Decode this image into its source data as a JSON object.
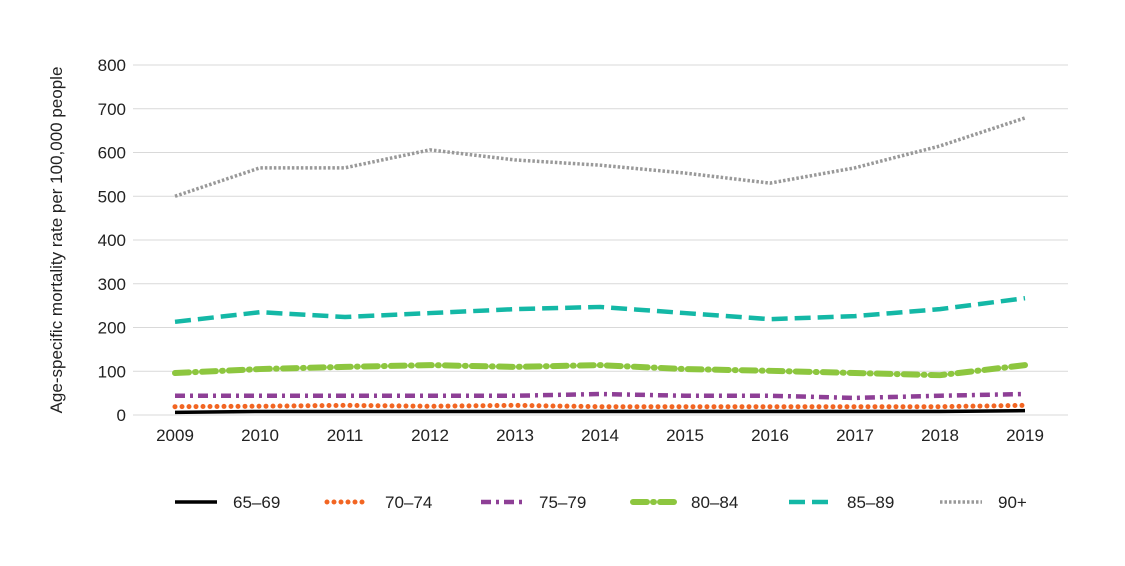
{
  "chart_data": {
    "type": "line",
    "title": "",
    "xlabel": "",
    "ylabel": "Age-specific mortality rate per 100,000 people",
    "ylim": [
      0,
      800
    ],
    "yticks": [
      0,
      100,
      200,
      300,
      400,
      500,
      600,
      700,
      800
    ],
    "x": [
      "2009",
      "2010",
      "2011",
      "2012",
      "2013",
      "2014",
      "2015",
      "2016",
      "2017",
      "2018",
      "2019"
    ],
    "grid": "horizontal",
    "legend_position": "bottom",
    "series": [
      {
        "name": "65–69",
        "color": "#000000",
        "dash": "solid",
        "values": [
          6,
          8,
          8,
          8,
          8,
          8,
          8,
          8,
          8,
          8,
          10
        ]
      },
      {
        "name": "70–74",
        "color": "#f26522",
        "dash": "dotted",
        "values": [
          19,
          20,
          22,
          20,
          22,
          19,
          19,
          19,
          19,
          19,
          22
        ]
      },
      {
        "name": "75–79",
        "color": "#8e3f96",
        "dash": "dashdot",
        "values": [
          44,
          44,
          44,
          44,
          44,
          48,
          44,
          44,
          39,
          44,
          48
        ]
      },
      {
        "name": "80–84",
        "color": "#8dc63f",
        "dash": "longdashdot",
        "values": [
          96,
          105,
          110,
          114,
          110,
          114,
          105,
          101,
          96,
          91,
          114
        ]
      },
      {
        "name": "85–89",
        "color": "#14b8a6",
        "dash": "dashed",
        "values": [
          213,
          235,
          224,
          233,
          242,
          247,
          233,
          219,
          226,
          242,
          267
        ]
      },
      {
        "name": "90+",
        "color": "#999999",
        "dash": "finedotted",
        "values": [
          500,
          565,
          565,
          606,
          583,
          571,
          553,
          530,
          565,
          615,
          679
        ]
      }
    ]
  }
}
